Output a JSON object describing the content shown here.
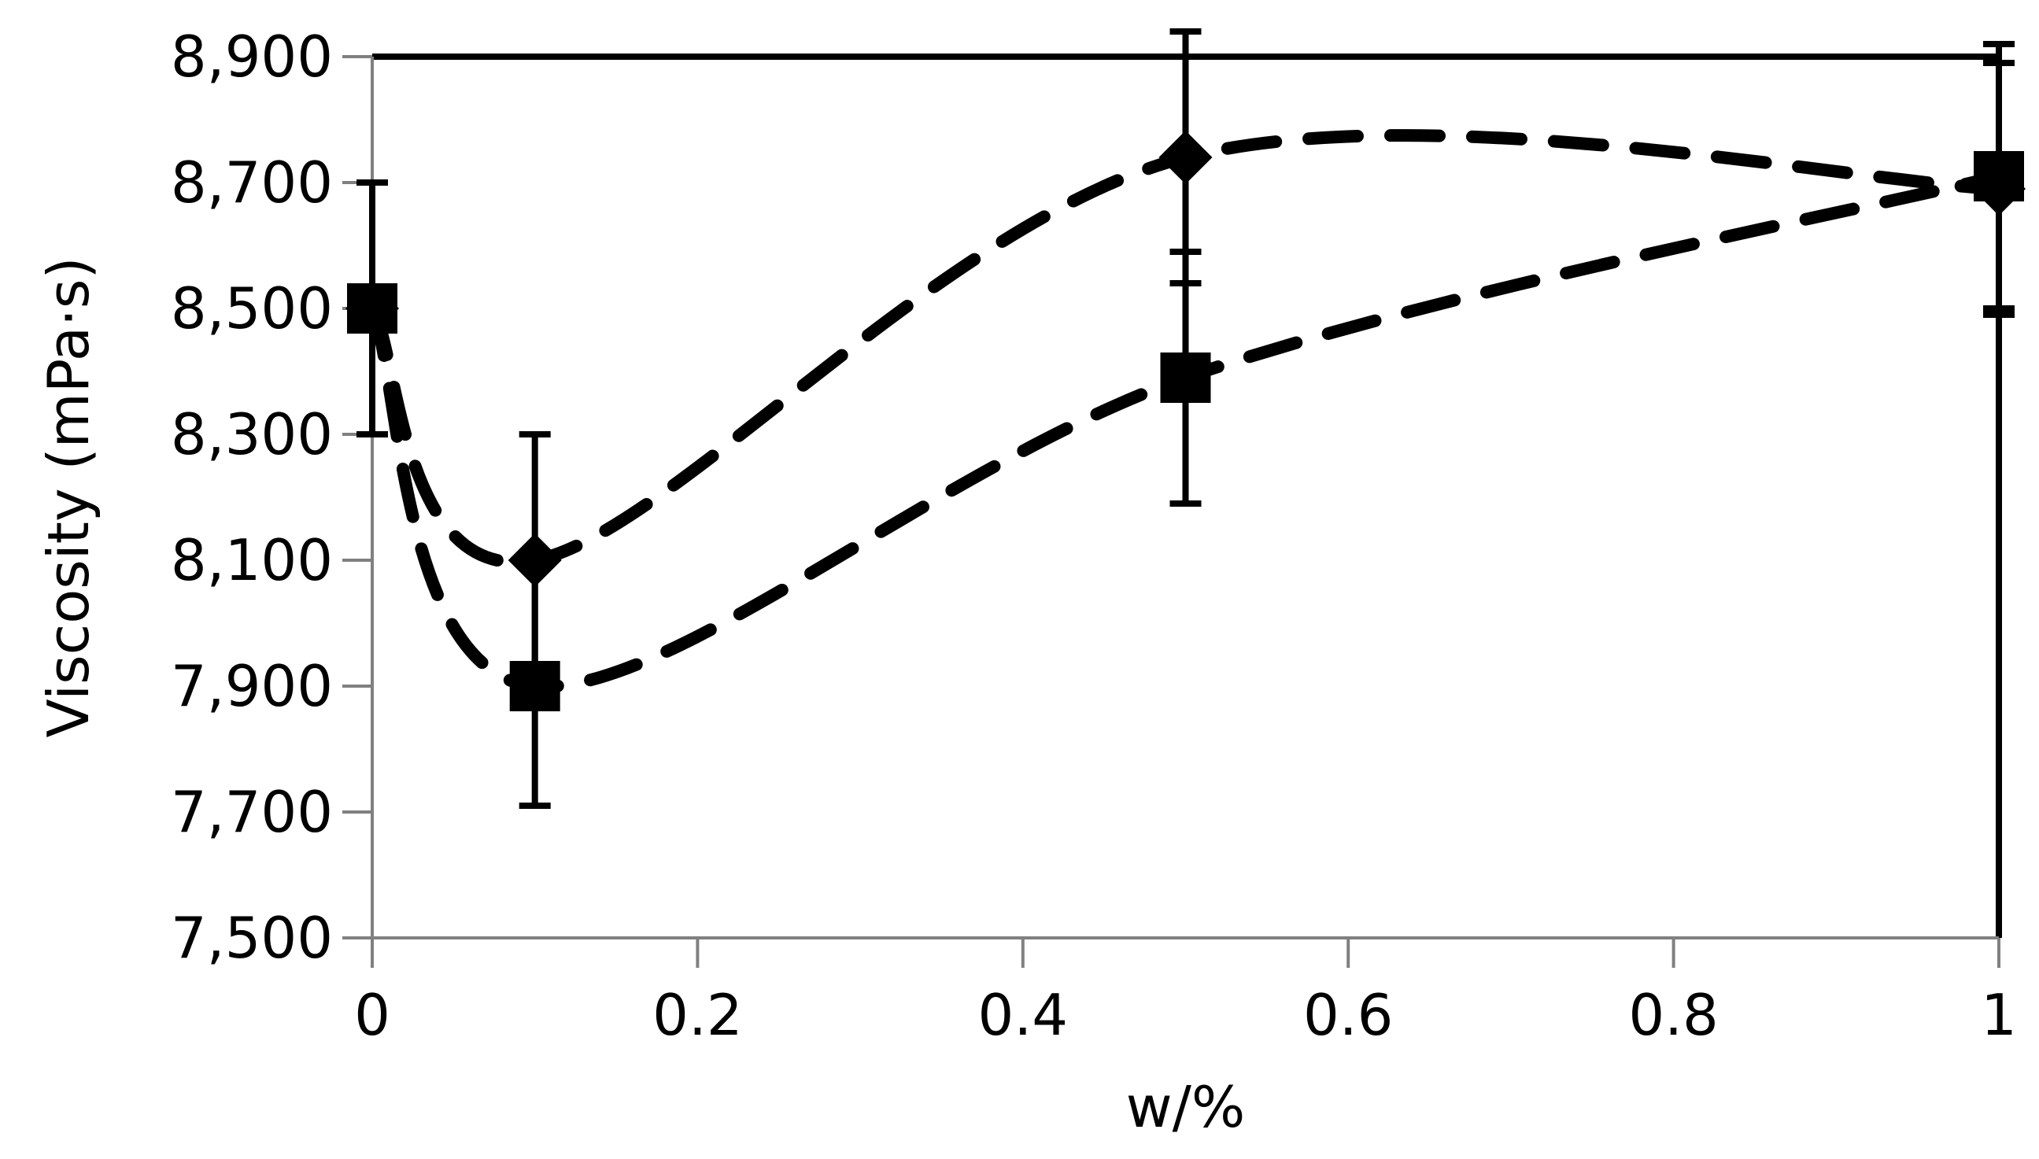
{
  "chart_data": {
    "type": "line",
    "xlabel": "w/%",
    "ylabel": "Viscosity (mPa·s)",
    "xlim": [
      0,
      1
    ],
    "ylim": [
      7500,
      8900
    ],
    "x_ticks": [
      "0",
      "0.2",
      "0.4",
      "0.6",
      "0.8",
      "1"
    ],
    "y_ticks": [
      "7,500",
      "7,700",
      "7,900",
      "8,100",
      "8,300",
      "8,500",
      "8,700",
      "8,900"
    ],
    "grid": false,
    "legend": "none",
    "line_style": "dashed",
    "color": "#000000",
    "series": [
      {
        "marker": "diamond",
        "x": [
          0,
          0.1,
          0.5,
          1
        ],
        "values": [
          8500,
          8100,
          8740,
          8690
        ],
        "error": [
          200,
          200,
          200,
          200
        ]
      },
      {
        "marker": "square",
        "x": [
          0,
          0.1,
          0.5,
          1
        ],
        "values": [
          8500,
          7900,
          8390,
          8710
        ],
        "error": [
          200,
          190,
          200,
          210
        ]
      }
    ]
  }
}
